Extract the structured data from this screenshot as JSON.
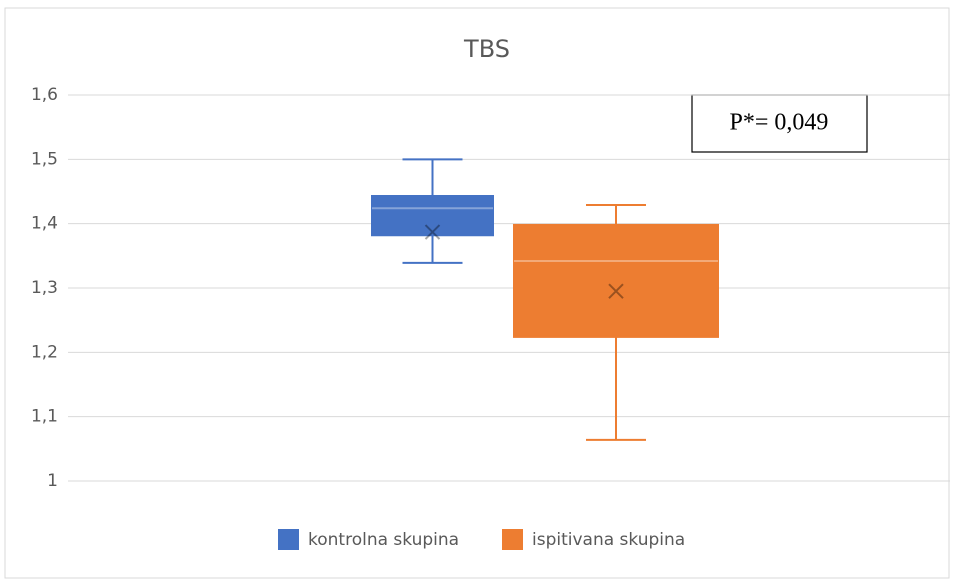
{
  "chart_data": {
    "type": "box",
    "title": "TBS",
    "series": [
      {
        "name": "kontrolna skupina",
        "color": "#4472c4",
        "min": 1.339,
        "q1": 1.382,
        "median": 1.424,
        "q3": 1.443,
        "max": 1.5,
        "mean": 1.387
      },
      {
        "name": "ispitivana skupina",
        "color": "#ed7d31",
        "min": 1.064,
        "q1": 1.224,
        "median": 1.342,
        "q3": 1.398,
        "max": 1.429,
        "mean": 1.295
      }
    ],
    "ylim": [
      1,
      1.6
    ],
    "yticks": [
      1,
      {
        "value": 1.1,
        "label": "1,1"
      },
      {
        "value": 1.2,
        "label": "1,2"
      },
      {
        "value": 1.3,
        "label": "1,3"
      },
      {
        "value": 1.4,
        "label": "1,4"
      },
      {
        "value": 1.5,
        "label": "1,5"
      },
      {
        "value": 1.6,
        "label": "1,6"
      }
    ],
    "grid": true,
    "legend": "bottom",
    "annotation": "P*= 0,049"
  }
}
